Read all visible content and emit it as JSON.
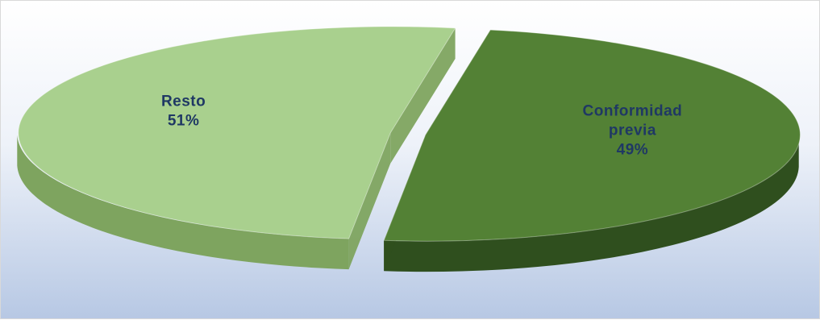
{
  "chart_data": {
    "type": "pie",
    "style": "3d-exploded",
    "title": "",
    "slices": [
      {
        "name": "Resto",
        "label_lines": [
          "Resto"
        ],
        "value": 51,
        "value_label": "51%",
        "color": "#a9d08e",
        "side_color": "#7ea45f"
      },
      {
        "name": "Conformidad previa",
        "label_lines": [
          "Conformidad",
          "previa"
        ],
        "value": 49,
        "value_label": "49%",
        "color": "#538135",
        "side_color": "#2f4f1e"
      }
    ],
    "label_color": "#1f3864",
    "background": {
      "top": "#ffffff",
      "bottom": "#b7c8e4"
    }
  }
}
